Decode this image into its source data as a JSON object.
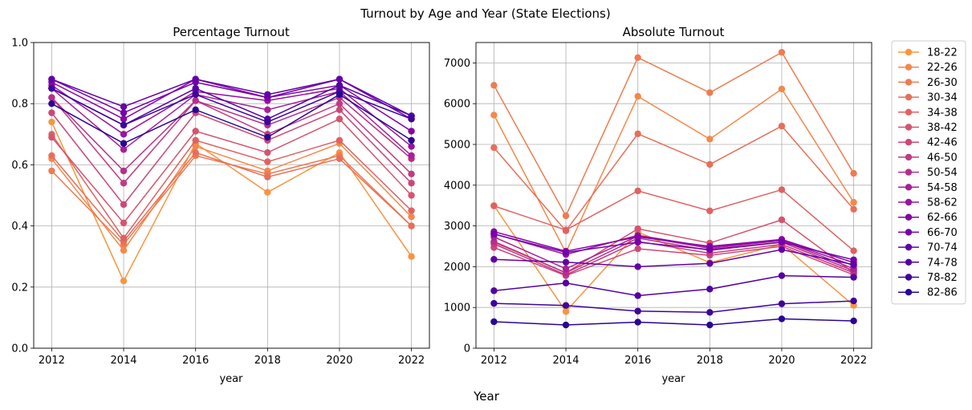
{
  "suptitle": "Turnout by Age and Year (State Elections)",
  "supxlabel": "Year",
  "chart_data": [
    {
      "type": "line",
      "title": "Percentage Turnout",
      "xlabel": "year",
      "ylabel": "",
      "x": [
        2012,
        2014,
        2016,
        2018,
        2020,
        2022
      ],
      "xticks": [
        "2012",
        "2014",
        "2016",
        "2018",
        "2020",
        "2022"
      ],
      "ylim": [
        0,
        1.0
      ],
      "yticks": [
        "0.0",
        "0.2",
        "0.4",
        "0.6",
        "0.8",
        "1.0"
      ],
      "grid": true,
      "series": [
        {
          "name": "18-22",
          "color": "#f89540",
          "values": [
            0.74,
            0.22,
            0.67,
            0.51,
            0.64,
            0.3
          ]
        },
        {
          "name": "22-26",
          "color": "#f48849",
          "values": [
            0.62,
            0.32,
            0.66,
            0.58,
            0.67,
            0.43
          ]
        },
        {
          "name": "26-30",
          "color": "#ee7b51",
          "values": [
            0.58,
            0.34,
            0.63,
            0.57,
            0.63,
            0.4
          ]
        },
        {
          "name": "30-34",
          "color": "#e76f5a",
          "values": [
            0.63,
            0.35,
            0.64,
            0.56,
            0.62,
            0.4
          ]
        },
        {
          "name": "34-38",
          "color": "#df6263",
          "values": [
            0.7,
            0.36,
            0.68,
            0.61,
            0.68,
            0.45
          ]
        },
        {
          "name": "38-42",
          "color": "#d5546e",
          "values": [
            0.69,
            0.41,
            0.71,
            0.64,
            0.75,
            0.5
          ]
        },
        {
          "name": "42-46",
          "color": "#cc4778",
          "values": [
            0.77,
            0.47,
            0.77,
            0.68,
            0.78,
            0.54
          ]
        },
        {
          "name": "46-50",
          "color": "#c13b82",
          "values": [
            0.82,
            0.54,
            0.81,
            0.7,
            0.8,
            0.57
          ]
        },
        {
          "name": "50-54",
          "color": "#b52f8c",
          "values": [
            0.82,
            0.58,
            0.81,
            0.73,
            0.82,
            0.62
          ]
        },
        {
          "name": "54-58",
          "color": "#a72197",
          "values": [
            0.85,
            0.65,
            0.83,
            0.78,
            0.84,
            0.63
          ]
        },
        {
          "name": "58-62",
          "color": "#9814a0",
          "values": [
            0.86,
            0.7,
            0.84,
            0.81,
            0.85,
            0.66
          ]
        },
        {
          "name": "62-66",
          "color": "#8606a6",
          "values": [
            0.87,
            0.75,
            0.88,
            0.82,
            0.86,
            0.71
          ]
        },
        {
          "name": "66-70",
          "color": "#7501a8",
          "values": [
            0.88,
            0.77,
            0.87,
            0.82,
            0.88,
            0.75
          ]
        },
        {
          "name": "70-74",
          "color": "#6300a7",
          "values": [
            0.88,
            0.79,
            0.88,
            0.83,
            0.88,
            0.76
          ]
        },
        {
          "name": "74-78",
          "color": "#5102a3",
          "values": [
            0.85,
            0.73,
            0.85,
            0.75,
            0.86,
            0.76
          ]
        },
        {
          "name": "78-82",
          "color": "#3e049c",
          "values": [
            0.85,
            0.73,
            0.83,
            0.74,
            0.84,
            0.75
          ]
        },
        {
          "name": "82-86",
          "color": "#2a0593",
          "values": [
            0.8,
            0.67,
            0.78,
            0.69,
            0.83,
            0.68
          ]
        }
      ]
    },
    {
      "type": "line",
      "title": "Absolute Turnout",
      "xlabel": "year",
      "ylabel": "",
      "x": [
        2012,
        2014,
        2016,
        2018,
        2020,
        2022
      ],
      "xticks": [
        "2012",
        "2014",
        "2016",
        "2018",
        "2020",
        "2022"
      ],
      "ylim": [
        0,
        7500
      ],
      "yticks": [
        "0",
        "1000",
        "2000",
        "3000",
        "4000",
        "5000",
        "6000",
        "7000"
      ],
      "grid": true,
      "legend": "outside-right",
      "series": [
        {
          "name": "18-22",
          "color": "#f89540",
          "values": [
            3500,
            900,
            2850,
            2100,
            2550,
            1050
          ]
        },
        {
          "name": "22-26",
          "color": "#f48849",
          "values": [
            5720,
            2350,
            6180,
            5130,
            6360,
            3580
          ]
        },
        {
          "name": "26-30",
          "color": "#ee7b51",
          "values": [
            6450,
            3250,
            7130,
            6270,
            7260,
            4290
          ]
        },
        {
          "name": "30-34",
          "color": "#e76f5a",
          "values": [
            4920,
            2880,
            5260,
            4510,
            5450,
            3410
          ]
        },
        {
          "name": "34-38",
          "color": "#df6263",
          "values": [
            3490,
            2900,
            3860,
            3370,
            3890,
            2390
          ]
        },
        {
          "name": "38-42",
          "color": "#d5546e",
          "values": [
            2600,
            1850,
            2930,
            2580,
            3150,
            1850
          ]
        },
        {
          "name": "42-46",
          "color": "#cc4778",
          "values": [
            2470,
            1780,
            2440,
            2280,
            2500,
            1800
          ]
        },
        {
          "name": "46-50",
          "color": "#c13b82",
          "values": [
            2560,
            1800,
            2620,
            2330,
            2550,
            1850
          ]
        },
        {
          "name": "50-54",
          "color": "#b52f8c",
          "values": [
            2620,
            1850,
            2700,
            2400,
            2600,
            1900
          ]
        },
        {
          "name": "54-58",
          "color": "#a72197",
          "values": [
            2730,
            1950,
            2750,
            2450,
            2640,
            1950
          ]
        },
        {
          "name": "58-62",
          "color": "#9814a0",
          "values": [
            2810,
            2300,
            2770,
            2480,
            2650,
            2030
          ]
        },
        {
          "name": "62-66",
          "color": "#8606a6",
          "values": [
            2860,
            2380,
            2730,
            2500,
            2670,
            2100
          ]
        },
        {
          "name": "66-70",
          "color": "#7501a8",
          "values": [
            2800,
            2350,
            2600,
            2420,
            2600,
            2170
          ]
        },
        {
          "name": "70-74",
          "color": "#6300a7",
          "values": [
            2180,
            2110,
            2000,
            2080,
            2420,
            2050
          ]
        },
        {
          "name": "74-78",
          "color": "#5102a3",
          "values": [
            1410,
            1600,
            1290,
            1450,
            1780,
            1740
          ]
        },
        {
          "name": "78-82",
          "color": "#3e049c",
          "values": [
            1100,
            1050,
            910,
            880,
            1090,
            1160
          ]
        },
        {
          "name": "82-86",
          "color": "#2a0593",
          "values": [
            650,
            570,
            640,
            570,
            720,
            670
          ]
        }
      ]
    }
  ]
}
